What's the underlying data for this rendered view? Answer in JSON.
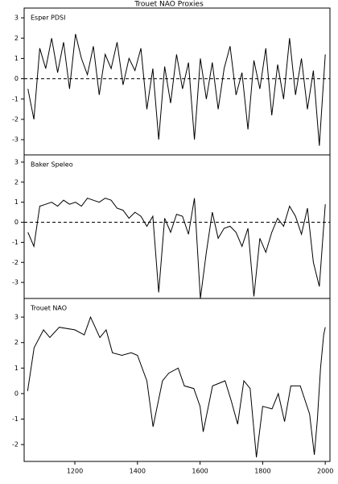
{
  "title": "Trouet NAO Proxies",
  "chart_data": [
    {
      "type": "line",
      "title": "Esper PDSI",
      "color": "#000000",
      "reference_line": 0,
      "xlim": [
        1038,
        2015
      ],
      "ylim": [
        -3.75,
        3.48
      ],
      "yticks": [
        -3,
        -2,
        -1,
        0,
        1,
        2,
        3
      ],
      "x": [
        1050,
        1069,
        1088,
        1107,
        1126,
        1145,
        1164,
        1183,
        1202,
        1221,
        1240,
        1259,
        1278,
        1297,
        1316,
        1335,
        1354,
        1373,
        1392,
        1411,
        1430,
        1449,
        1468,
        1487,
        1506,
        1525,
        1544,
        1563,
        1582,
        1601,
        1620,
        1639,
        1658,
        1677,
        1696,
        1715,
        1734,
        1753,
        1772,
        1791,
        1810,
        1829,
        1848,
        1867,
        1886,
        1905,
        1924,
        1943,
        1962,
        1981,
        2000
      ],
      "values": [
        -0.5,
        -2.0,
        1.5,
        0.5,
        2.0,
        0.3,
        1.8,
        -0.5,
        2.2,
        1.0,
        0.2,
        1.6,
        -0.8,
        1.2,
        0.5,
        1.8,
        -0.3,
        1.0,
        0.4,
        1.5,
        -1.5,
        0.5,
        -3.0,
        0.6,
        -1.2,
        1.2,
        -0.5,
        0.8,
        -3.0,
        1.0,
        -1.0,
        0.8,
        -1.5,
        0.5,
        1.6,
        -0.8,
        0.3,
        -2.5,
        0.9,
        -0.5,
        1.5,
        -1.8,
        0.7,
        -1.0,
        2.0,
        -0.8,
        1.0,
        -1.5,
        0.4,
        -3.3,
        1.2
      ]
    },
    {
      "type": "line",
      "title": "Baker Speleo",
      "color": "#000000",
      "reference_line": 0,
      "xlim": [
        1038,
        2015
      ],
      "ylim": [
        -3.8,
        3.36
      ],
      "yticks": [
        -3,
        -2,
        -1,
        0,
        1,
        2,
        3
      ],
      "x": [
        1050,
        1069,
        1088,
        1107,
        1126,
        1145,
        1164,
        1183,
        1202,
        1221,
        1240,
        1259,
        1278,
        1297,
        1316,
        1335,
        1354,
        1373,
        1392,
        1411,
        1430,
        1449,
        1468,
        1487,
        1506,
        1525,
        1544,
        1563,
        1582,
        1601,
        1620,
        1639,
        1658,
        1677,
        1696,
        1715,
        1734,
        1753,
        1772,
        1791,
        1810,
        1829,
        1848,
        1867,
        1886,
        1905,
        1924,
        1943,
        1962,
        1981,
        2000
      ],
      "values": [
        -0.5,
        -1.2,
        0.8,
        0.9,
        1.0,
        0.8,
        1.1,
        0.9,
        1.0,
        0.8,
        1.2,
        1.1,
        1.0,
        1.2,
        1.1,
        0.7,
        0.6,
        0.2,
        0.5,
        0.3,
        -0.2,
        0.3,
        -3.5,
        0.2,
        -0.5,
        0.4,
        0.3,
        -0.6,
        1.2,
        -3.8,
        -1.5,
        0.5,
        -0.8,
        -0.3,
        -0.2,
        -0.5,
        -1.2,
        -0.3,
        -3.7,
        -0.8,
        -1.5,
        -0.5,
        0.2,
        -0.2,
        0.8,
        0.3,
        -0.6,
        0.7,
        -2.0,
        -3.2,
        0.9
      ]
    },
    {
      "type": "line",
      "title": "Trouet NAO",
      "color": "#000000",
      "xlim": [
        1038,
        2015
      ],
      "ylim": [
        -2.66,
        3.73
      ],
      "yticks": [
        -2,
        -1,
        0,
        1,
        2,
        3
      ],
      "xticks": [
        1200,
        1400,
        1600,
        1800,
        2000
      ],
      "x": [
        1049,
        1070,
        1100,
        1120,
        1150,
        1200,
        1230,
        1250,
        1280,
        1300,
        1320,
        1350,
        1380,
        1400,
        1430,
        1450,
        1480,
        1500,
        1530,
        1550,
        1580,
        1600,
        1610,
        1640,
        1680,
        1700,
        1720,
        1740,
        1760,
        1780,
        1800,
        1830,
        1850,
        1870,
        1890,
        1920,
        1950,
        1965,
        1975,
        1985,
        1995,
        2000
      ],
      "values": [
        0.1,
        1.8,
        2.5,
        2.2,
        2.6,
        2.5,
        2.3,
        3.0,
        2.2,
        2.5,
        1.6,
        1.5,
        1.6,
        1.5,
        0.5,
        -1.3,
        0.5,
        0.8,
        1.0,
        0.3,
        0.2,
        -0.5,
        -1.5,
        0.3,
        0.5,
        -0.3,
        -1.2,
        0.5,
        0.2,
        -2.5,
        -0.5,
        -0.6,
        0,
        -1.1,
        0.3,
        0.3,
        -0.8,
        -2.4,
        -1.0,
        1.0,
        2.3,
        2.6
      ]
    }
  ]
}
